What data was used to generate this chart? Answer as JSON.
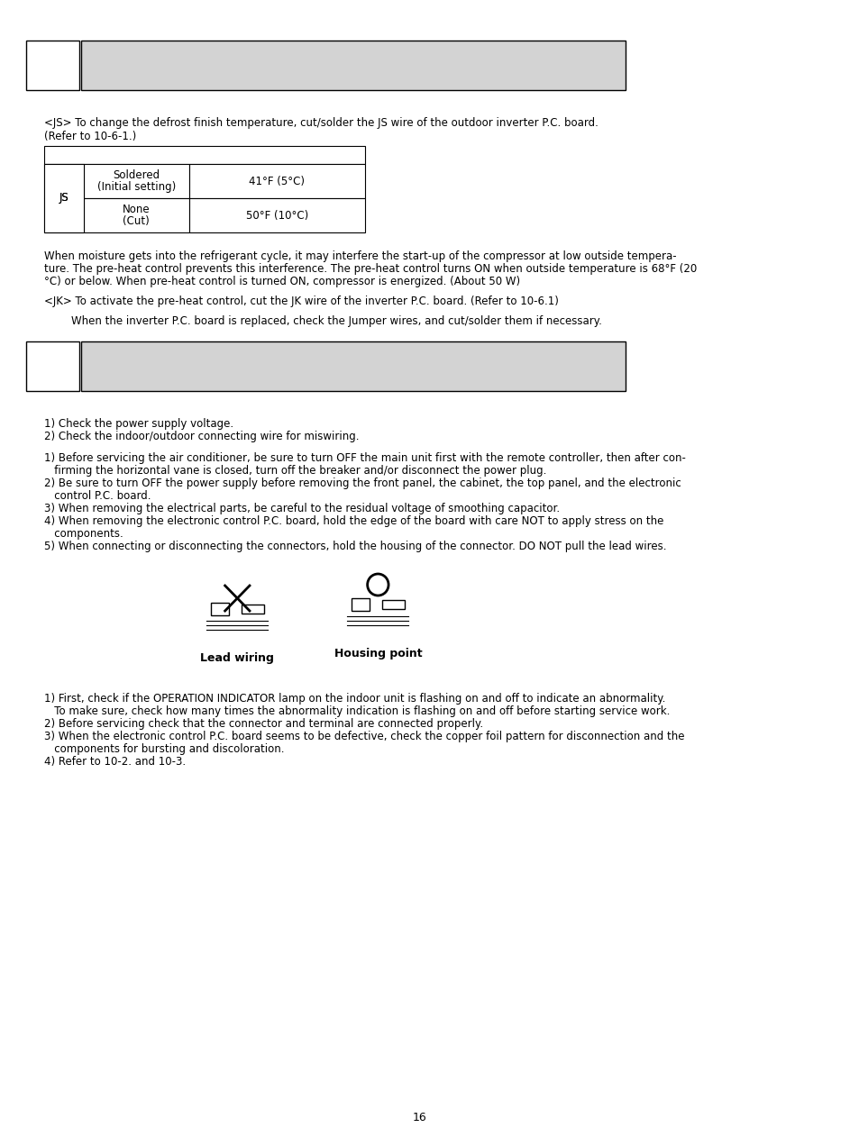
{
  "page_number": "16",
  "background_color": "#ffffff",
  "header_box1_color": "#ffffff",
  "header_box2_color": "#d3d3d3",
  "section1_header_text": "",
  "section1_body": [
    "<JS> To change the defrost finish temperature, cut/solder the JS wire of the outdoor inverter P.C. board.",
    "(Refer to 10-6-1.)"
  ],
  "table_rows": [
    [
      "JS",
      "Soldered\n(Initial setting)",
      "41°F (5°C)"
    ],
    [
      "JS",
      "None\n(Cut)",
      "50°F (10°C)"
    ]
  ],
  "section1_body2": [
    "When moisture gets into the refrigerant cycle, it may interfere the start-up of the compressor at low outside tempera-",
    "ture. The pre-heat control prevents this interference. The pre-heat control turns ON when outside temperature is 68°F (20",
    "°C) or below. When pre-heat control is turned ON, compressor is energized. (About 50 W)",
    "",
    "<JK> To activate the pre-heat control, cut the JK wire of the inverter P.C. board. (Refer to 10-6.1)",
    "",
    "        When the inverter P.C. board is replaced, check the Jumper wires, and cut/solder them if necessary."
  ],
  "section2_header_text": "",
  "section2_body1": [
    "1) Check the power supply voltage.",
    "2) Check the indoor/outdoor connecting wire for miswiring."
  ],
  "section2_body2": [
    "1) Before servicing the air conditioner, be sure to turn OFF the main unit first with the remote controller, then after con-",
    "   firming the horizontal vane is closed, turn off the breaker and/or disconnect the power plug.",
    "2) Be sure to turn OFF the power supply before removing the front panel, the cabinet, the top panel, and the electronic",
    "   control P.C. board.",
    "3) When removing the electrical parts, be careful to the residual voltage of smoothing capacitor.",
    "4) When removing the electronic control P.C. board, hold the edge of the board with care NOT to apply stress on the",
    "   components.",
    "5) When connecting or disconnecting the connectors, hold the housing of the connector. DO NOT pull the lead wires."
  ],
  "lead_wiring_label": "Lead wiring",
  "housing_point_label": "Housing point",
  "section2_body3": [
    "1) First, check if the OPERATION INDICATOR lamp on the indoor unit is flashing on and off to indicate an abnormality.",
    "   To make sure, check how many times the abnormality indication is flashing on and off before starting service work.",
    "2) Before servicing check that the connector and terminal are connected properly.",
    "3) When the electronic control P.C. board seems to be defective, check the copper foil pattern for disconnection and the",
    "   components for bursting and discoloration.",
    "4) Refer to 10-2. and 10-3."
  ]
}
